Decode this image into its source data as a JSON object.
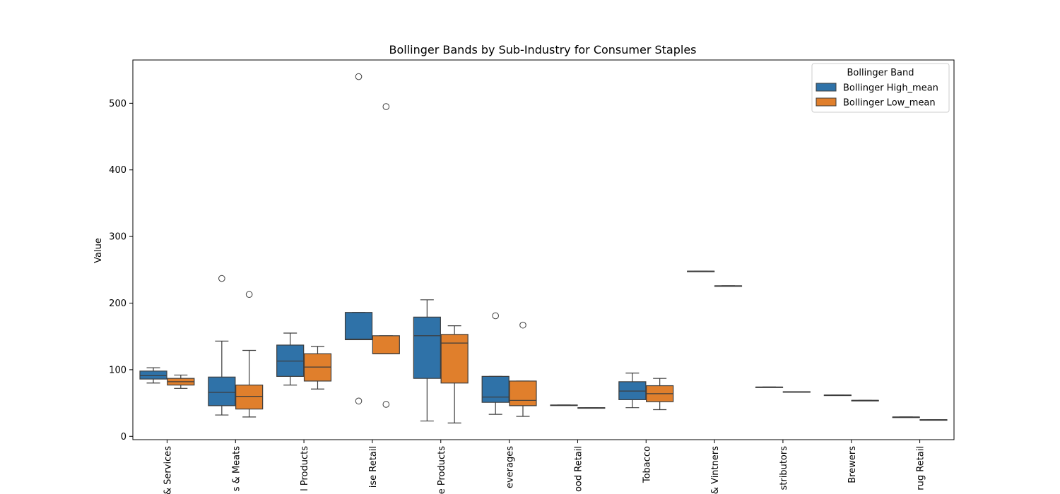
{
  "chart_data": {
    "type": "box",
    "title": "Bollinger Bands by Sub-Industry for Consumer Staples",
    "xlabel": "",
    "ylabel": "Value",
    "ylim": [
      -5,
      565
    ],
    "yticks": [
      0,
      100,
      200,
      300,
      400,
      500
    ],
    "grid": false,
    "categories": [
      "Drug Retail & Services",
      "Packaged Foods & Meats",
      "Household Products",
      "Consumer Staples Merchandise Retail",
      "Personal Care Products",
      "Soft Drinks & Non-alcoholic Beverages",
      "Food Retail",
      "Tobacco",
      "Distillers & Vintners",
      "Food Distributors",
      "Brewers",
      "Drug Retail"
    ],
    "tick_labels_visible": [
      "& Services",
      "s & Meats",
      "l Products",
      "ise Retail",
      "e Products",
      "everages",
      "ood Retail",
      "Tobacco",
      "& Vintners",
      "stributors",
      "Brewers",
      "rug Retail"
    ],
    "legend": {
      "title": "Bollinger Band",
      "position": "top-right",
      "entries": [
        "Bollinger High_mean",
        "Bollinger Low_mean"
      ]
    },
    "series": [
      {
        "name": "Bollinger High_mean",
        "color": "#2f72a8",
        "boxes": [
          {
            "whislo": 80,
            "q1": 86,
            "med": 91,
            "q3": 98,
            "whishi": 103,
            "fliers": []
          },
          {
            "whislo": 32,
            "q1": 46,
            "med": 66,
            "q3": 89,
            "whishi": 143,
            "fliers": [
              237
            ]
          },
          {
            "whislo": 77,
            "q1": 90,
            "med": 113,
            "q3": 137,
            "whishi": 155,
            "fliers": []
          },
          {
            "whislo": 145,
            "q1": 145,
            "med": 146,
            "q3": 186,
            "whishi": 186,
            "fliers": [
              540,
              53
            ]
          },
          {
            "whislo": 23,
            "q1": 87,
            "med": 151,
            "q3": 179,
            "whishi": 205,
            "fliers": []
          },
          {
            "whislo": 33,
            "q1": 51,
            "med": 59,
            "q3": 90,
            "whishi": 90,
            "fliers": [
              181
            ]
          },
          {
            "whislo": 47,
            "q1": 47,
            "med": 47,
            "q3": 47,
            "whishi": 47,
            "fliers": []
          },
          {
            "whislo": 43,
            "q1": 55,
            "med": 68,
            "q3": 82,
            "whishi": 95,
            "fliers": []
          },
          {
            "whislo": 248,
            "q1": 248,
            "med": 248,
            "q3": 248,
            "whishi": 248,
            "fliers": []
          },
          {
            "whislo": 74,
            "q1": 74,
            "med": 74,
            "q3": 74,
            "whishi": 74,
            "fliers": []
          },
          {
            "whislo": 62,
            "q1": 62,
            "med": 62,
            "q3": 62,
            "whishi": 62,
            "fliers": []
          },
          {
            "whislo": 29,
            "q1": 29,
            "med": 29,
            "q3": 29,
            "whishi": 29,
            "fliers": []
          }
        ]
      },
      {
        "name": "Bollinger Low_mean",
        "color": "#e07f2c",
        "boxes": [
          {
            "whislo": 72,
            "q1": 77,
            "med": 82,
            "q3": 87,
            "whishi": 92,
            "fliers": []
          },
          {
            "whislo": 29,
            "q1": 41,
            "med": 60,
            "q3": 77,
            "whishi": 129,
            "fliers": [
              213
            ]
          },
          {
            "whislo": 71,
            "q1": 83,
            "med": 104,
            "q3": 124,
            "whishi": 135,
            "fliers": []
          },
          {
            "whislo": 124,
            "q1": 124,
            "med": 124,
            "q3": 151,
            "whishi": 151,
            "fliers": [
              495,
              48
            ]
          },
          {
            "whislo": 20,
            "q1": 80,
            "med": 140,
            "q3": 153,
            "whishi": 166,
            "fliers": []
          },
          {
            "whislo": 30,
            "q1": 46,
            "med": 54,
            "q3": 83,
            "whishi": 83,
            "fliers": [
              167
            ]
          },
          {
            "whislo": 43,
            "q1": 43,
            "med": 43,
            "q3": 43,
            "whishi": 43,
            "fliers": []
          },
          {
            "whislo": 40,
            "q1": 52,
            "med": 64,
            "q3": 76,
            "whishi": 87,
            "fliers": []
          },
          {
            "whislo": 226,
            "q1": 226,
            "med": 226,
            "q3": 226,
            "whishi": 226,
            "fliers": []
          },
          {
            "whislo": 67,
            "q1": 67,
            "med": 67,
            "q3": 67,
            "whishi": 67,
            "fliers": []
          },
          {
            "whislo": 54,
            "q1": 54,
            "med": 54,
            "q3": 54,
            "whishi": 54,
            "fliers": []
          },
          {
            "whislo": 25,
            "q1": 25,
            "med": 25,
            "q3": 25,
            "whishi": 25,
            "fliers": []
          }
        ]
      }
    ]
  }
}
